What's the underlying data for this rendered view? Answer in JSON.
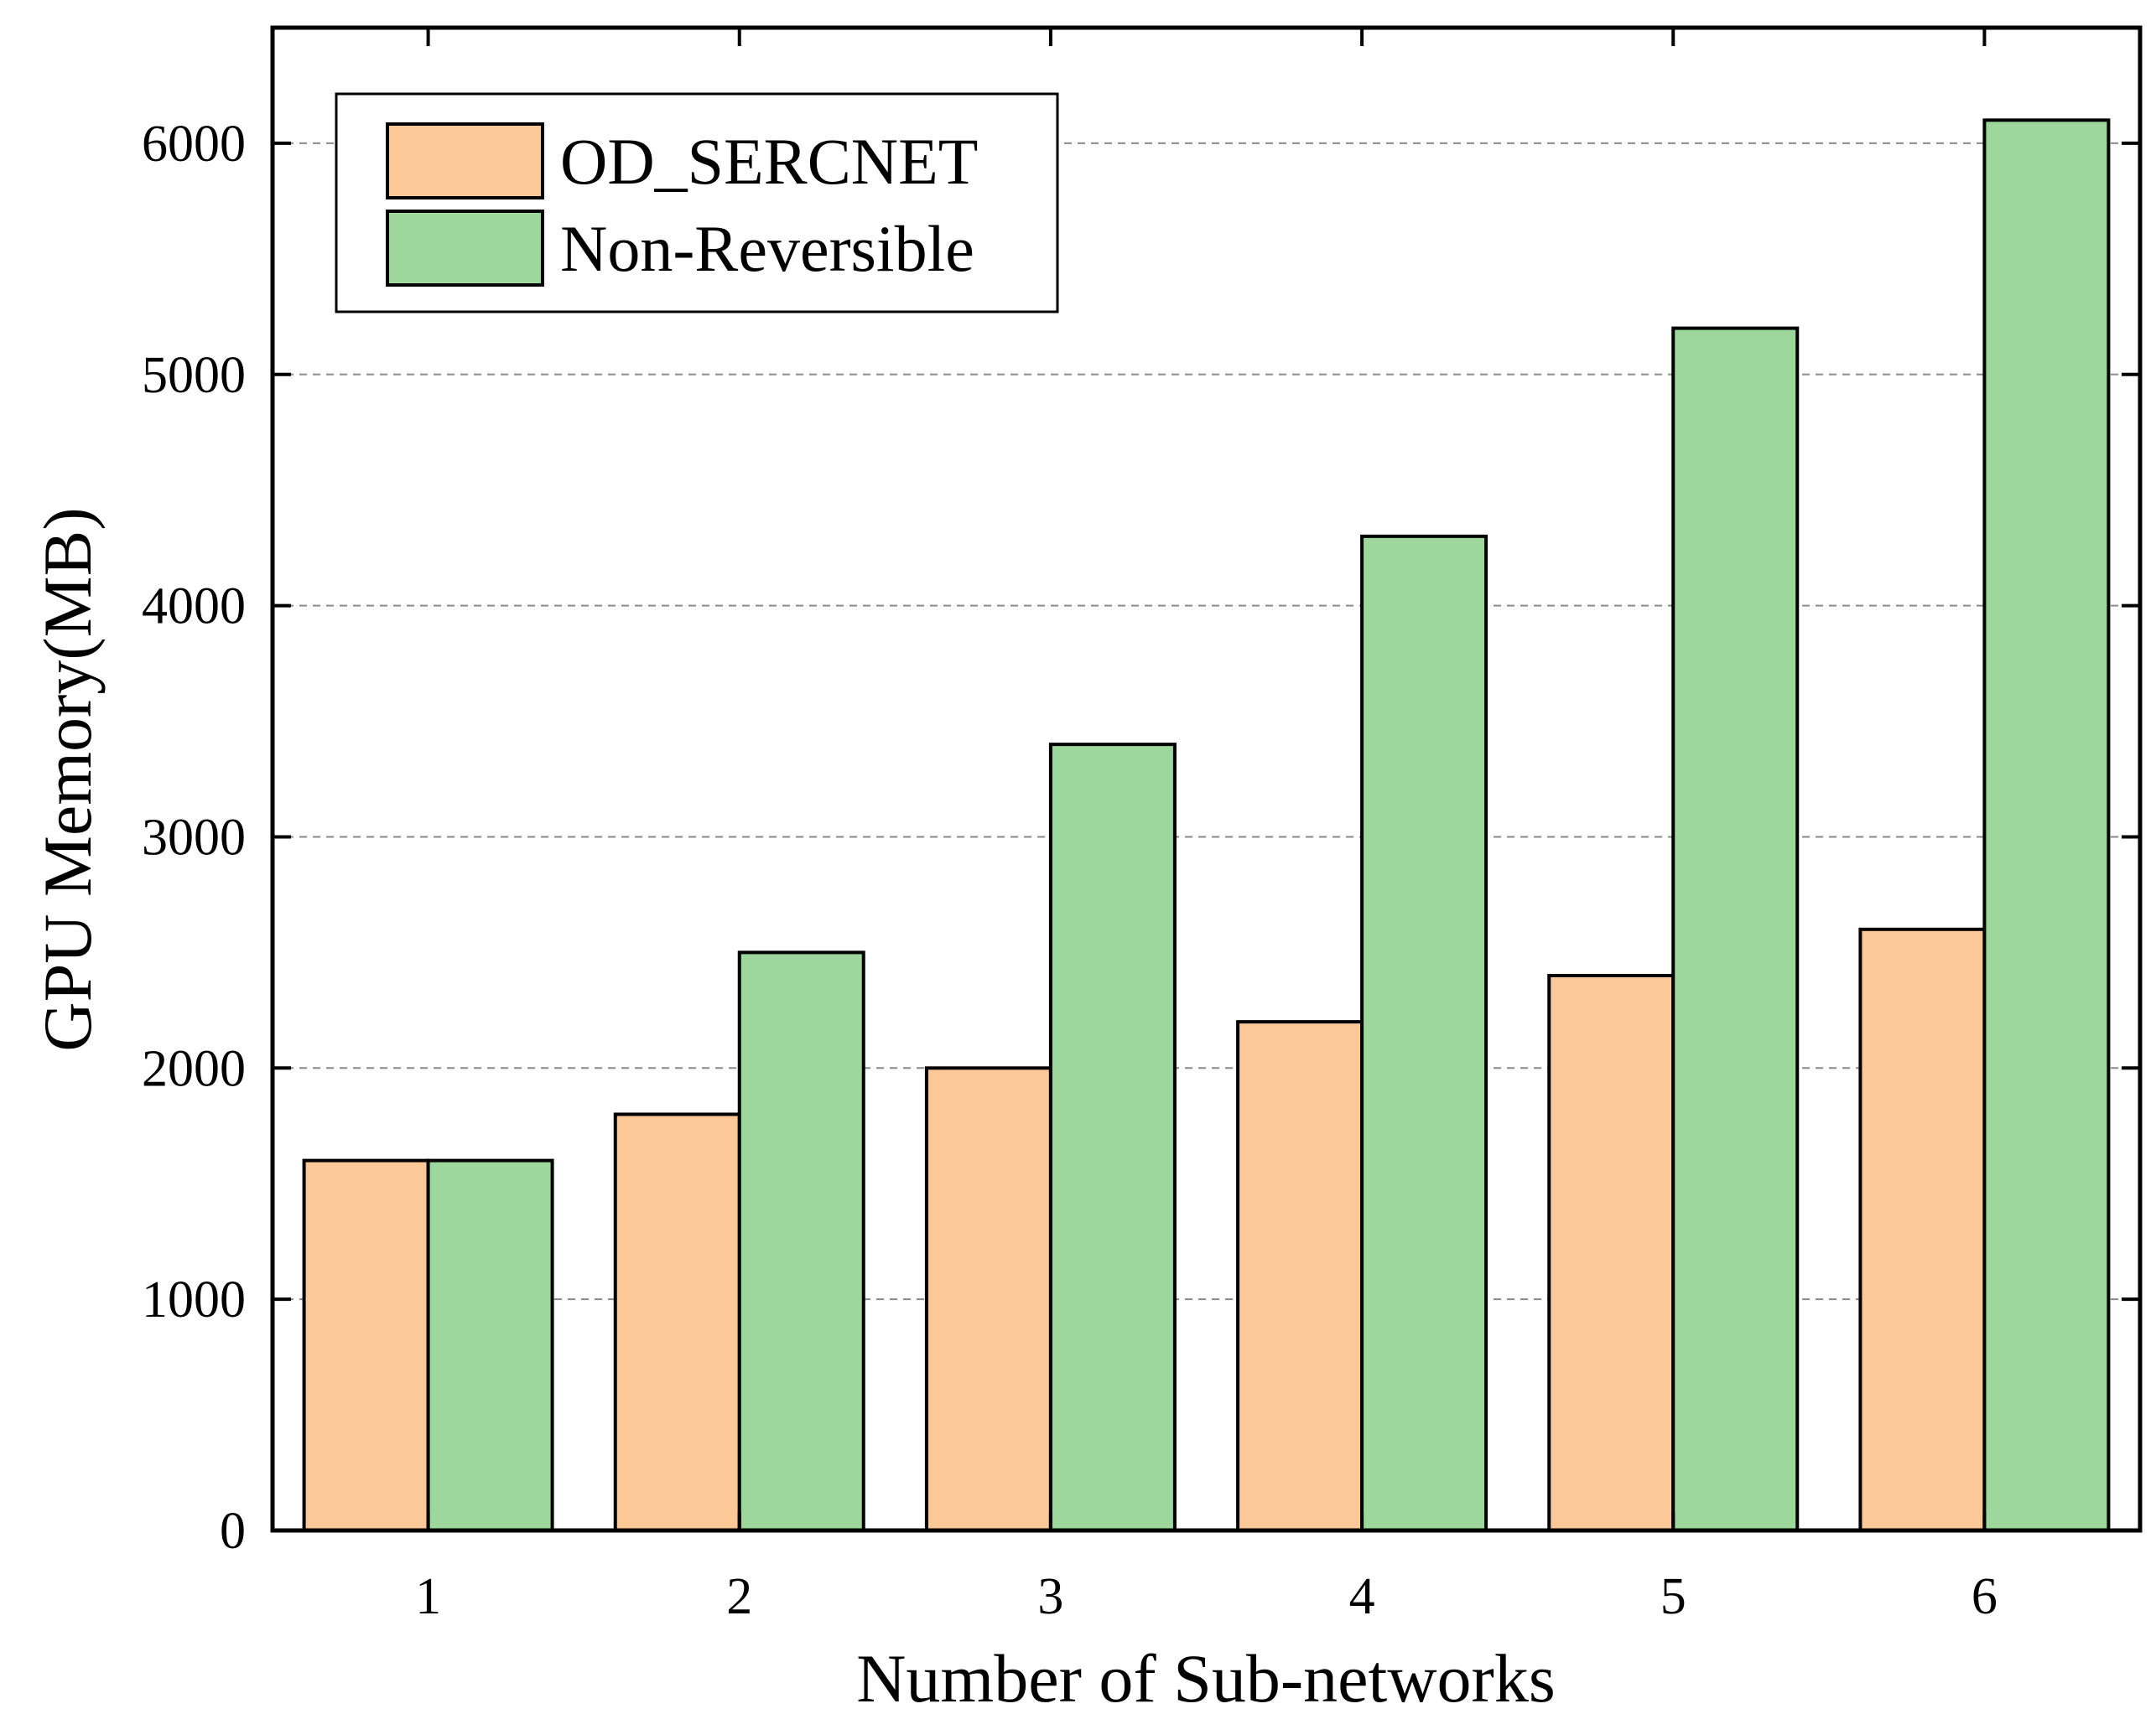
{
  "chart_data": {
    "type": "bar",
    "title": "",
    "xlabel": "Number of Sub-networks",
    "ylabel": "GPU Memory(MB)",
    "categories": [
      "1",
      "2",
      "3",
      "4",
      "5",
      "6"
    ],
    "ylim": [
      0,
      6500
    ],
    "yticks": [
      0,
      1000,
      2000,
      3000,
      4000,
      5000,
      6000
    ],
    "yticklabels": [
      "0",
      "1000",
      "2000",
      "3000",
      "4000",
      "5000",
      "6000"
    ],
    "grid": "horizontal dashed",
    "legend_position": "top-left",
    "series": [
      {
        "name": "OD_SERCNET",
        "color": "#fcc898",
        "values": [
          1600,
          1800,
          2000,
          2200,
          2400,
          2600
        ]
      },
      {
        "name": "Non-Reversible",
        "color": "#9ed79b",
        "values": [
          1600,
          2500,
          3400,
          4300,
          5200,
          6100
        ]
      }
    ]
  }
}
